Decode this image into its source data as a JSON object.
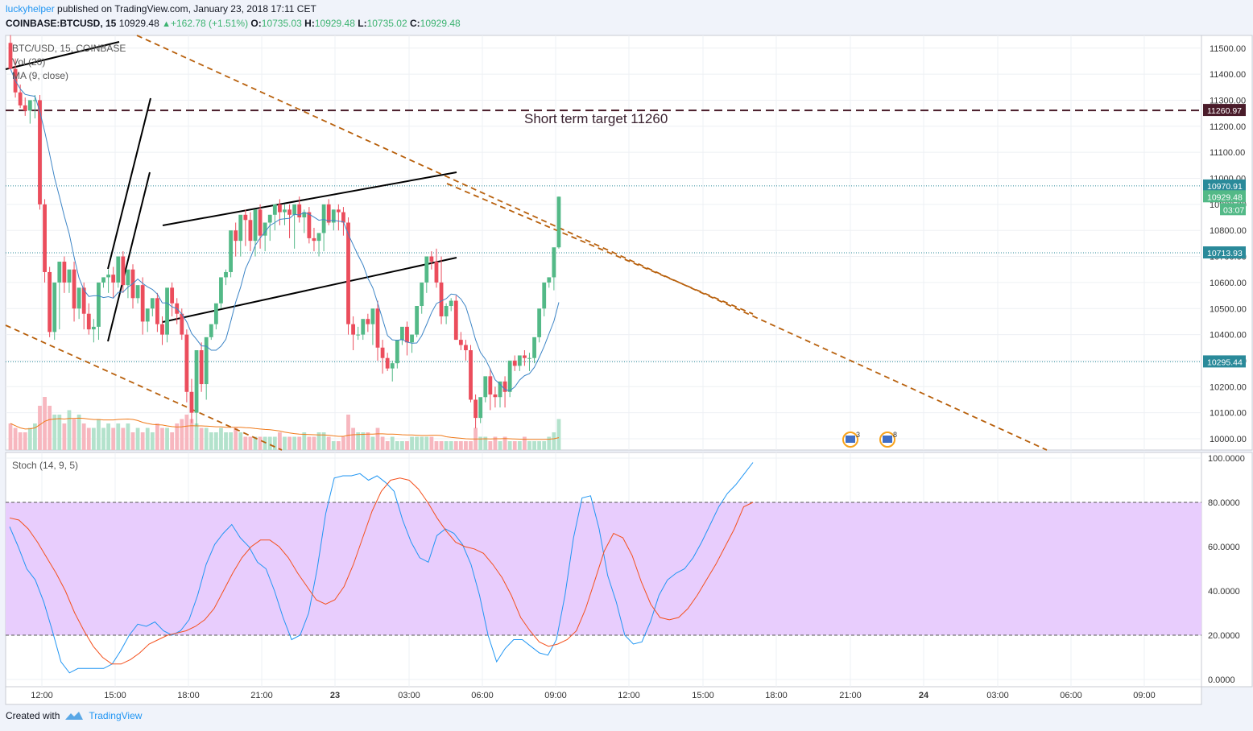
{
  "header": {
    "user": "luckyhelper",
    "published_text": "published on TradingView.com, January 23, 2018 17:11 CET",
    "symbol": "COINBASE:BTCUSD, 15",
    "last": "10929.48",
    "change": "+162.78 (+1.51%)",
    "o_label": "O:",
    "o_value": "10735.03",
    "h_label": "H:",
    "h_value": "10929.48",
    "l_label": "L:",
    "l_value": "10735.02",
    "c_label": "C:",
    "c_value": "10929.48"
  },
  "legend": {
    "symbol_line": "BTC/USD, 15, COINBASE",
    "vol_line": "Vol (20)",
    "ma_line": "MA (9, close)",
    "stoch_line": "Stoch (14, 9, 5)"
  },
  "annotation": {
    "target_text": "Short term target 11260"
  },
  "price_labels": {
    "target": "11260.97",
    "resistance": "10970.91",
    "last": "10929.48",
    "countdown": "03:07",
    "mid": "10713.93",
    "support": "10295.44"
  },
  "events": {
    "flag1_count": "3",
    "flag2_count": "8"
  },
  "footer": {
    "created": "Created with",
    "brand": "TradingView"
  },
  "colors": {
    "up": "#53b987",
    "down": "#eb4d5c",
    "ma": "#3d85c6",
    "stoch_k": "#2196f3",
    "stoch_d": "#f4511e",
    "stoch_band": "#e8cdfd",
    "target_line": "#4a1c2a",
    "trendline": "#b8600c",
    "chart_bg": "#ffffff"
  },
  "chart_data": {
    "type": "candlestick",
    "symbol": "BTC/USD",
    "interval": "15",
    "exchange": "COINBASE",
    "x_ticks": [
      "12:00",
      "15:00",
      "18:00",
      "21:00",
      "23",
      "03:00",
      "06:00",
      "09:00",
      "12:00",
      "15:00",
      "18:00",
      "21:00",
      "24",
      "03:00",
      "06:00",
      "09:00"
    ],
    "y_ticks": [
      "10000.00",
      "10100.00",
      "10200.00",
      "10300.00",
      "10400.00",
      "10500.00",
      "10600.00",
      "10700.00",
      "10800.00",
      "10900.00",
      "11000.00",
      "11100.00",
      "11200.00",
      "11300.00",
      "11400.00",
      "11500.00"
    ],
    "y_range": [
      9950,
      11550
    ],
    "price_lines": {
      "target": 11260.97,
      "resistance": 10970.91,
      "mid": 10713.93,
      "support": 10295.44
    },
    "ohlc": {
      "o": [
        11520,
        11420,
        11330,
        11280,
        11260,
        11300,
        11300,
        10900,
        10640,
        10410,
        10600,
        10680,
        10600,
        10650,
        10500,
        10580,
        10480,
        10420,
        10430,
        10600,
        10620,
        10630,
        10600,
        10700,
        10590,
        10650,
        10540,
        10590,
        10450,
        10500,
        10540,
        10440,
        10400,
        10580,
        10520,
        10480,
        10400,
        10180,
        10100,
        10340,
        10210,
        10390,
        10440,
        10520,
        10620,
        10640,
        10800,
        10760,
        10860,
        10840,
        10760,
        10880,
        10780,
        10830,
        10860,
        10900,
        10870,
        10880,
        10860,
        10900,
        10850,
        10870,
        10770,
        10760,
        10790,
        10900,
        10830,
        10880,
        10870,
        10830,
        10440,
        10400,
        10400,
        10460,
        10440,
        10500,
        10350,
        10310,
        10270,
        10290,
        10380,
        10430,
        10370,
        10400,
        10510,
        10600,
        10700,
        10680,
        10600,
        10470,
        10510,
        10530,
        10380,
        10360,
        10340,
        10150,
        10080,
        10160,
        10240,
        10170,
        10160,
        10220,
        10180,
        10300,
        10280,
        10320,
        10310,
        10310,
        10390,
        10500,
        10600,
        10620,
        10735
      ],
      "h": [
        11550,
        11460,
        11360,
        11310,
        11300,
        11320,
        11320,
        10920,
        10660,
        10460,
        10620,
        10700,
        10640,
        10680,
        10540,
        10600,
        10520,
        10460,
        10450,
        10620,
        10650,
        10660,
        10640,
        10720,
        10620,
        10670,
        10580,
        10620,
        10490,
        10530,
        10560,
        10470,
        10430,
        10600,
        10540,
        10500,
        10420,
        10230,
        10130,
        10370,
        10240,
        10420,
        10470,
        10550,
        10650,
        10660,
        10830,
        10840,
        10880,
        10870,
        10800,
        10900,
        10810,
        10860,
        10880,
        10920,
        10900,
        10900,
        10890,
        10930,
        10880,
        10890,
        10810,
        10780,
        10810,
        10920,
        10880,
        10900,
        10890,
        10850,
        10470,
        10430,
        10430,
        10480,
        10470,
        10530,
        10380,
        10330,
        10300,
        10310,
        10400,
        10450,
        10400,
        10430,
        10530,
        10620,
        10720,
        10730,
        10700,
        10520,
        10540,
        10550,
        10410,
        10380,
        10360,
        10170,
        10100,
        10180,
        10270,
        10200,
        10190,
        10240,
        10210,
        10320,
        10300,
        10340,
        10330,
        10330,
        10410,
        10520,
        10620,
        10640,
        10930
      ],
      "l": [
        11480,
        11310,
        11270,
        11240,
        11210,
        11230,
        10880,
        10600,
        10390,
        10380,
        10420,
        10560,
        10560,
        10450,
        10460,
        10420,
        10400,
        10370,
        10380,
        10580,
        10560,
        10540,
        10580,
        10560,
        10540,
        10500,
        10520,
        10400,
        10410,
        10470,
        10410,
        10360,
        10370,
        10470,
        10440,
        10380,
        10140,
        10060,
        10050,
        10180,
        10150,
        10380,
        10420,
        10500,
        10590,
        10620,
        10700,
        10700,
        10740,
        10720,
        10700,
        10730,
        10720,
        10760,
        10800,
        10820,
        10820,
        10770,
        10730,
        10830,
        10790,
        10750,
        10720,
        10700,
        10720,
        10820,
        10800,
        10800,
        10780,
        10400,
        10340,
        10380,
        10380,
        10410,
        10360,
        10300,
        10250,
        10260,
        10220,
        10270,
        10360,
        10320,
        10330,
        10390,
        10480,
        10560,
        10650,
        10580,
        10440,
        10440,
        10490,
        10380,
        10340,
        10300,
        10140,
        10040,
        10060,
        10140,
        10110,
        10120,
        10120,
        10120,
        10160,
        10260,
        10260,
        10280,
        10260,
        10290,
        10370,
        10470,
        10580,
        10570,
        10730
      ],
      "c": [
        11420,
        11330,
        11280,
        11260,
        11300,
        11300,
        10900,
        10640,
        10410,
        10600,
        10680,
        10600,
        10650,
        10500,
        10580,
        10480,
        10420,
        10430,
        10600,
        10620,
        10630,
        10600,
        10700,
        10590,
        10650,
        10540,
        10590,
        10450,
        10500,
        10540,
        10440,
        10400,
        10580,
        10520,
        10480,
        10400,
        10180,
        10100,
        10340,
        10210,
        10390,
        10440,
        10520,
        10620,
        10640,
        10800,
        10760,
        10860,
        10840,
        10760,
        10880,
        10780,
        10830,
        10860,
        10900,
        10870,
        10880,
        10860,
        10900,
        10850,
        10870,
        10770,
        10760,
        10790,
        10900,
        10830,
        10880,
        10870,
        10830,
        10440,
        10400,
        10400,
        10460,
        10440,
        10500,
        10350,
        10310,
        10270,
        10290,
        10380,
        10430,
        10370,
        10400,
        10510,
        10600,
        10700,
        10680,
        10600,
        10470,
        10510,
        10530,
        10380,
        10360,
        10340,
        10150,
        10080,
        10160,
        10240,
        10170,
        10160,
        10220,
        10180,
        10300,
        10280,
        10320,
        10310,
        10310,
        10390,
        10500,
        10600,
        10620,
        10735,
        10929.48
      ]
    },
    "volume": [
      6,
      5,
      4,
      4,
      5,
      6,
      10,
      12,
      10,
      8,
      8,
      6,
      9,
      7,
      8,
      6,
      5,
      5,
      7,
      5,
      6,
      5,
      6,
      5,
      6,
      4,
      5,
      4,
      5,
      4,
      6,
      5,
      5,
      4,
      6,
      7,
      8,
      7,
      6,
      5,
      5,
      4,
      4,
      5,
      4,
      4,
      5,
      4,
      3,
      3,
      3,
      3,
      3,
      3,
      3,
      4,
      3,
      3,
      3,
      3,
      4,
      3,
      3,
      4,
      4,
      3,
      2,
      2,
      3,
      8,
      5,
      4,
      4,
      4,
      3,
      5,
      3,
      2,
      3,
      2,
      2,
      2,
      3,
      3,
      3,
      3,
      3,
      2,
      2,
      2,
      2,
      2,
      2,
      2,
      2,
      5,
      3,
      3,
      2,
      3,
      2,
      3,
      2,
      2,
      2,
      3,
      2,
      2,
      2,
      2,
      3,
      4,
      7
    ],
    "volume_ma_period": 20,
    "ma_period": 9,
    "stochastic": {
      "params": [
        14,
        9,
        5
      ],
      "y_ticks": [
        "0.0000",
        "20.0000",
        "40.0000",
        "60.0000",
        "80.0000",
        "100.0000"
      ],
      "bands": [
        20,
        80
      ],
      "k": [
        69,
        60,
        50,
        45,
        35,
        22,
        8,
        3,
        5,
        5,
        5,
        5,
        7,
        13,
        20,
        25,
        24,
        26,
        22,
        20,
        22,
        27,
        38,
        52,
        61,
        66,
        70,
        64,
        60,
        53,
        50,
        40,
        28,
        18,
        20,
        30,
        50,
        75,
        91,
        92,
        92,
        93,
        90,
        92,
        89,
        85,
        72,
        62,
        55,
        53,
        65,
        68,
        66,
        61,
        52,
        38,
        20,
        8,
        14,
        18,
        18,
        15,
        12,
        11,
        18,
        38,
        64,
        82,
        83,
        68,
        47,
        35,
        20,
        16,
        17,
        26,
        38,
        45,
        48,
        50,
        55,
        62,
        70,
        78,
        84,
        88,
        93,
        98
      ],
      "d": [
        73,
        72,
        68,
        62,
        55,
        48,
        40,
        30,
        22,
        15,
        10,
        7,
        7,
        9,
        12,
        16,
        18,
        20,
        21,
        22,
        24,
        27,
        32,
        40,
        48,
        55,
        60,
        63,
        63,
        60,
        55,
        48,
        42,
        36,
        34,
        36,
        42,
        52,
        64,
        76,
        85,
        90,
        91,
        90,
        86,
        80,
        73,
        67,
        62,
        60,
        59,
        57,
        52,
        46,
        38,
        28,
        22,
        17,
        15,
        16,
        18,
        22,
        32,
        45,
        58,
        66,
        64,
        56,
        44,
        34,
        28,
        27,
        28,
        32,
        38,
        45,
        52,
        60,
        68,
        78,
        80
      ],
      "d_start": 0
    }
  }
}
